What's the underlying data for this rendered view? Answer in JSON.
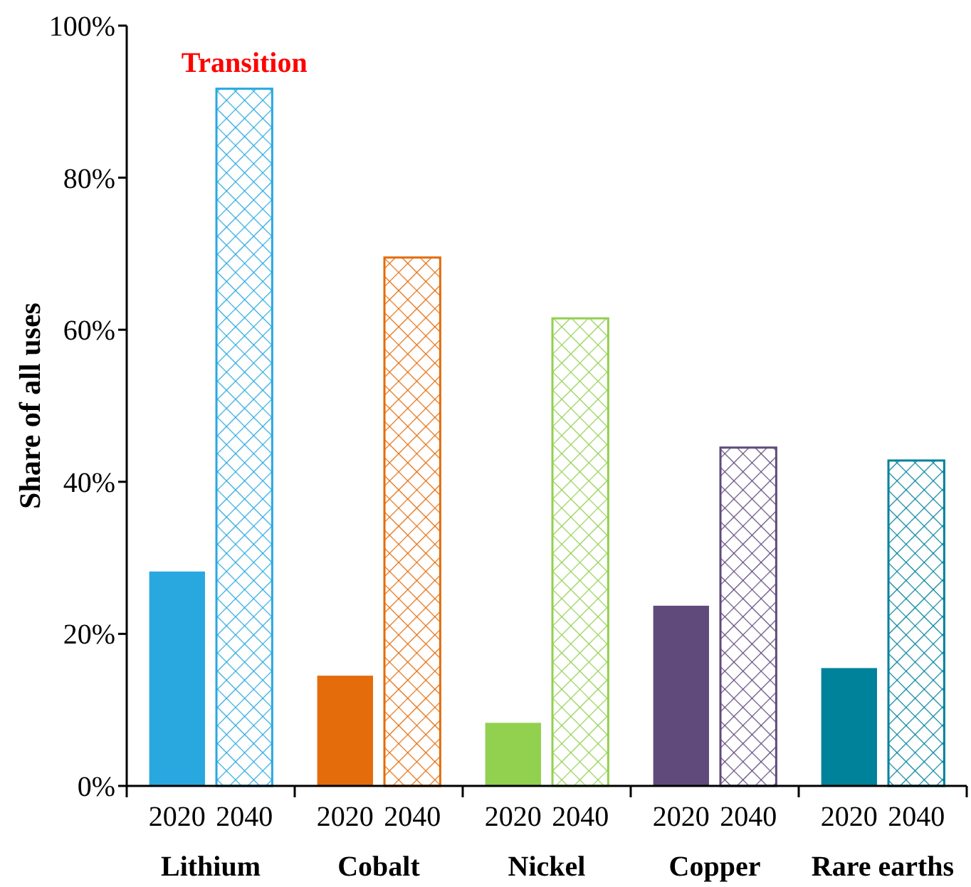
{
  "chart_data": {
    "type": "bar",
    "ylabel": "Share of all uses",
    "categories": [
      "Lithium",
      "Cobalt",
      "Nickel",
      "Copper",
      "Rare earths"
    ],
    "series": [
      {
        "name": "2020",
        "colors": [
          "#29a8e0",
          "#e46c0a",
          "#92d050",
          "#604a7b",
          "#00829b"
        ],
        "values": [
          28.2,
          14.5,
          8.3,
          23.7,
          15.5
        ]
      },
      {
        "name": "2040",
        "colors": [
          "#29a8e0",
          "#e46c0a",
          "#92d050",
          "#604a7b",
          "#00829b"
        ],
        "values": [
          91.7,
          69.5,
          61.5,
          44.5,
          42.8
        ]
      }
    ],
    "ylim": [
      0,
      100
    ],
    "yticks": [
      {
        "value": 0,
        "label": "0%"
      },
      {
        "value": 20,
        "label": "20%"
      },
      {
        "value": 40,
        "label": "40%"
      },
      {
        "value": 60,
        "label": "60%"
      },
      {
        "value": 80,
        "label": "80%"
      },
      {
        "value": 100,
        "label": "100%"
      }
    ],
    "annotations": [
      {
        "text": "Transition",
        "x": "Lithium",
        "y": 91.7
      }
    ]
  }
}
